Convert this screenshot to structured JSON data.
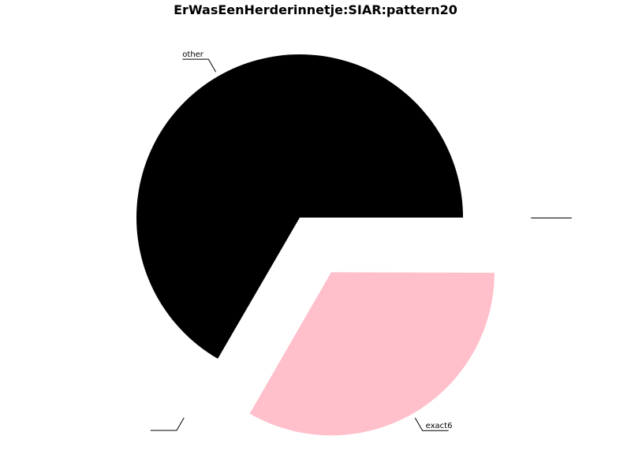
{
  "chart_data": {
    "type": "pie",
    "title": "ErWasEenHerderinnetje:SIAR:pattern20",
    "slices": [
      {
        "label": "other",
        "value": 66.7,
        "color": "#000000",
        "exploded": false
      },
      {
        "label": "",
        "value": 0.05,
        "color": "#ffffff",
        "exploded": true
      },
      {
        "label": "exact6",
        "value": 33.3,
        "color": "#ffc0cb",
        "exploded": true
      },
      {
        "label": "",
        "value": 0.05,
        "color": "#ffffff",
        "exploded": true
      }
    ],
    "start_angle_deg": 0,
    "direction": "counterclockwise"
  }
}
